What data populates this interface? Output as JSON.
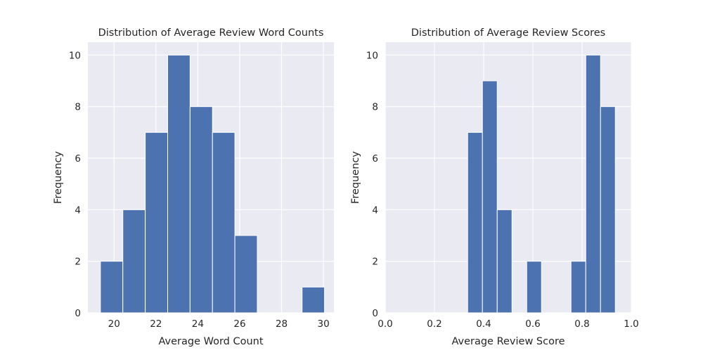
{
  "chart_data": [
    {
      "type": "bar",
      "title": "Distribution of Average Review Word Counts",
      "xlabel": "Average Word Count",
      "ylabel": "Frequency",
      "bins": [
        {
          "start": 19.35,
          "end": 20.42,
          "count": 2
        },
        {
          "start": 20.42,
          "end": 21.49,
          "count": 4
        },
        {
          "start": 21.49,
          "end": 22.56,
          "count": 7
        },
        {
          "start": 22.56,
          "end": 23.63,
          "count": 10
        },
        {
          "start": 23.63,
          "end": 24.7,
          "count": 8
        },
        {
          "start": 24.7,
          "end": 25.77,
          "count": 7
        },
        {
          "start": 25.77,
          "end": 26.84,
          "count": 3
        },
        {
          "start": 26.84,
          "end": 27.91,
          "count": 0
        },
        {
          "start": 27.91,
          "end": 28.98,
          "count": 0
        },
        {
          "start": 28.98,
          "end": 30.05,
          "count": 1
        }
      ],
      "xlim": [
        18.75,
        30.5
      ],
      "ylim": [
        0,
        10.5
      ],
      "xticks": [
        "20",
        "22",
        "24",
        "26",
        "28",
        "30"
      ],
      "yticks": [
        "0",
        "2",
        "4",
        "6",
        "8",
        "10"
      ],
      "grid": true,
      "bar_color": "#4c72b0",
      "background_color": "#eaeaf2"
    },
    {
      "type": "bar",
      "title": "Distribution of Average Review Scores",
      "xlabel": "Average Review Score",
      "ylabel": "Frequency",
      "bins": [
        {
          "start": 0.335,
          "end": 0.395,
          "count": 7
        },
        {
          "start": 0.395,
          "end": 0.455,
          "count": 9
        },
        {
          "start": 0.455,
          "end": 0.515,
          "count": 4
        },
        {
          "start": 0.515,
          "end": 0.575,
          "count": 0
        },
        {
          "start": 0.575,
          "end": 0.635,
          "count": 2
        },
        {
          "start": 0.635,
          "end": 0.695,
          "count": 0
        },
        {
          "start": 0.695,
          "end": 0.755,
          "count": 0
        },
        {
          "start": 0.755,
          "end": 0.815,
          "count": 2
        },
        {
          "start": 0.815,
          "end": 0.875,
          "count": 10
        },
        {
          "start": 0.875,
          "end": 0.935,
          "count": 8
        }
      ],
      "xlim": [
        0,
        1
      ],
      "ylim": [
        0,
        10.5
      ],
      "xticks": [
        "0.0",
        "0.2",
        "0.4",
        "0.6",
        "0.8",
        "1.0"
      ],
      "yticks": [
        "0",
        "2",
        "4",
        "6",
        "8",
        "10"
      ],
      "grid": true,
      "bar_color": "#4c72b0",
      "background_color": "#eaeaf2"
    }
  ]
}
